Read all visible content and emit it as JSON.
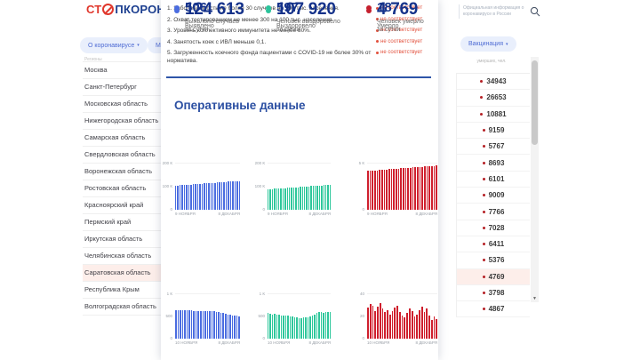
{
  "header": {
    "logo_prefix": "СТ",
    "logo_suffix": "ПКОРОНАВИ",
    "nav_about": "О коронавирусе",
    "nav_about_arrow": "▾",
    "nav_measures": "М",
    "search_caption": "Официальная информация о коронавирусе в России",
    "vaccination_label": "Вакцинация",
    "vaccination_arrow": "▾"
  },
  "checklist": {
    "items": [
      {
        "num": "1.",
        "text": "Заболеваемость не более 30 случаев на 100 тыс. населения.",
        "status": "не соответствует"
      },
      {
        "num": "2.",
        "text": "Охват тестированием не менее 300 на 100 тыс. населения.",
        "status": "не соответствует"
      },
      {
        "num": "3.",
        "text": "Уровень коллективного иммунитета не менее 80%.",
        "status": "не соответствует"
      },
      {
        "num": "4.",
        "text": "Занятость коек с ИВЛ меньше 0,1.",
        "status": "не соответствует"
      },
      {
        "num": "5.",
        "text": "Загруженность коечного фонда пациентами с COVID-19 не более 30% от норматива.",
        "status": "не соответствует"
      }
    ]
  },
  "regions_table": {
    "sidebar_header": "Регионы",
    "deaths_header": "умерших, чел.",
    "selected_index": 12,
    "rows": [
      {
        "name": "Москва",
        "deaths": "34943"
      },
      {
        "name": "Санкт-Петербург",
        "deaths": "26653"
      },
      {
        "name": "Московская область",
        "deaths": "10881"
      },
      {
        "name": "Нижегородская область",
        "deaths": "9159"
      },
      {
        "name": "Самарская область",
        "deaths": "5767"
      },
      {
        "name": "Свердловская область",
        "deaths": "8693"
      },
      {
        "name": "Воронежская область",
        "deaths": "6101"
      },
      {
        "name": "Ростовская область",
        "deaths": "9009"
      },
      {
        "name": "Красноярский край",
        "deaths": "7766"
      },
      {
        "name": "Пермский край",
        "deaths": "7028"
      },
      {
        "name": "Иркутская область",
        "deaths": "6411"
      },
      {
        "name": "Челябинская область",
        "deaths": "5376"
      },
      {
        "name": "Саратовская область",
        "deaths": "4769"
      },
      {
        "name": "Республика Крым",
        "deaths": "3798"
      },
      {
        "name": "Волгоградская область",
        "deaths": "4867"
      }
    ]
  },
  "main": {
    "title": "Оперативные данные",
    "stats": [
      {
        "value": "124 613",
        "label": "Выявлено",
        "color": "#4a6ce0"
      },
      {
        "value": "107 920",
        "label": "Выздоровело",
        "color": "#2bc39b"
      },
      {
        "value": "4 769",
        "label": "Умерло",
        "color": "#c5202e"
      }
    ],
    "daily_stats": [
      {
        "value": "506",
        "lines": [
          "Выявлено случаев",
          "за сутки"
        ],
        "color": "#4a6ce0"
      },
      {
        "value": "597",
        "lines": [
          "Человек выздоровело",
          "за сутки"
        ],
        "color": "#2bc39b"
      },
      {
        "value": "18",
        "lines": [
          "Человек умерло",
          "за сутки"
        ],
        "color": "#c5202e"
      }
    ]
  },
  "chart_data": [
    {
      "type": "bar",
      "name": "Выявлено всего",
      "color": "#4a6ce0",
      "ymax": 200000,
      "yticks": [
        "200 К",
        "100 К",
        "0"
      ],
      "x_first": "9 НОЯБРЯ",
      "x_last": "8 ДЕКАБРЯ",
      "values": [
        104500,
        105200,
        105900,
        106600,
        107300,
        108000,
        108700,
        109400,
        110100,
        110800,
        111500,
        112200,
        112900,
        113600,
        114300,
        115000,
        115700,
        116400,
        117100,
        117800,
        118500,
        119200,
        119900,
        120600,
        121300,
        122000,
        122700,
        123400,
        124100,
        124613
      ]
    },
    {
      "type": "bar",
      "name": "Выздоровело всего",
      "color": "#2ec79b",
      "ymax": 200000,
      "yticks": [
        "200 К",
        "100 К",
        "0"
      ],
      "x_first": "9 НОЯБРЯ",
      "x_last": "8 ДЕКАБРЯ",
      "values": [
        89000,
        89650,
        90300,
        90950,
        91600,
        92250,
        92900,
        93550,
        94200,
        94850,
        95500,
        96150,
        96800,
        97450,
        98100,
        98750,
        99400,
        100050,
        100700,
        101350,
        102000,
        102650,
        103300,
        103950,
        104600,
        105250,
        105900,
        106550,
        107300,
        107920
      ]
    },
    {
      "type": "bar",
      "name": "Умерло всего",
      "color": "#cf1f2d",
      "ymax": 5000,
      "yticks": [
        "5 К",
        "0"
      ],
      "x_first": "9 НОЯБРЯ",
      "x_last": "8 ДЕКАБРЯ",
      "values": [
        4200,
        4220,
        4240,
        4260,
        4280,
        4300,
        4320,
        4340,
        4360,
        4380,
        4400,
        4420,
        4440,
        4460,
        4480,
        4500,
        4520,
        4540,
        4560,
        4580,
        4600,
        4620,
        4640,
        4655,
        4670,
        4690,
        4710,
        4730,
        4750,
        4769
      ]
    },
    {
      "type": "bar",
      "name": "Выявлено за сутки",
      "color": "#4a6ce0",
      "ymax": 1000,
      "yticks": [
        "1 К",
        "500",
        "0"
      ],
      "x_first": "10 НОЯБРЯ",
      "x_last": "8 ДЕКАБРЯ",
      "values": [
        638,
        637,
        636,
        635,
        634,
        633,
        632,
        631,
        630,
        629,
        628,
        627,
        626,
        625,
        623,
        621,
        618,
        613,
        606,
        596,
        584,
        571,
        558,
        546,
        537,
        529,
        521,
        513,
        506
      ]
    },
    {
      "type": "bar",
      "name": "Выздоровело за сутки",
      "color": "#2ec79b",
      "ymax": 1000,
      "yticks": [
        "1 К",
        "500",
        "0"
      ],
      "x_first": "10 НОЯБРЯ",
      "x_last": "8 ДЕКАБРЯ",
      "values": [
        575,
        562,
        548,
        556,
        541,
        531,
        521,
        516,
        526,
        511,
        501,
        491,
        481,
        471,
        466,
        461,
        471,
        481,
        476,
        491,
        511,
        541,
        571,
        591,
        601,
        586,
        606,
        596,
        597
      ]
    },
    {
      "type": "bar",
      "name": "Умерло за сутки",
      "color": "#cf1f2d",
      "ymax": 40,
      "yticks": [
        "40",
        "20",
        "0"
      ],
      "x_first": "10 НОЯБРЯ",
      "x_last": "8 ДЕКАБРЯ",
      "values": [
        28,
        31,
        30,
        25,
        29,
        32,
        27,
        24,
        26,
        22,
        25,
        28,
        30,
        24,
        21,
        19,
        23,
        27,
        25,
        20,
        22,
        26,
        29,
        24,
        27,
        21,
        17,
        20,
        18
      ]
    }
  ]
}
